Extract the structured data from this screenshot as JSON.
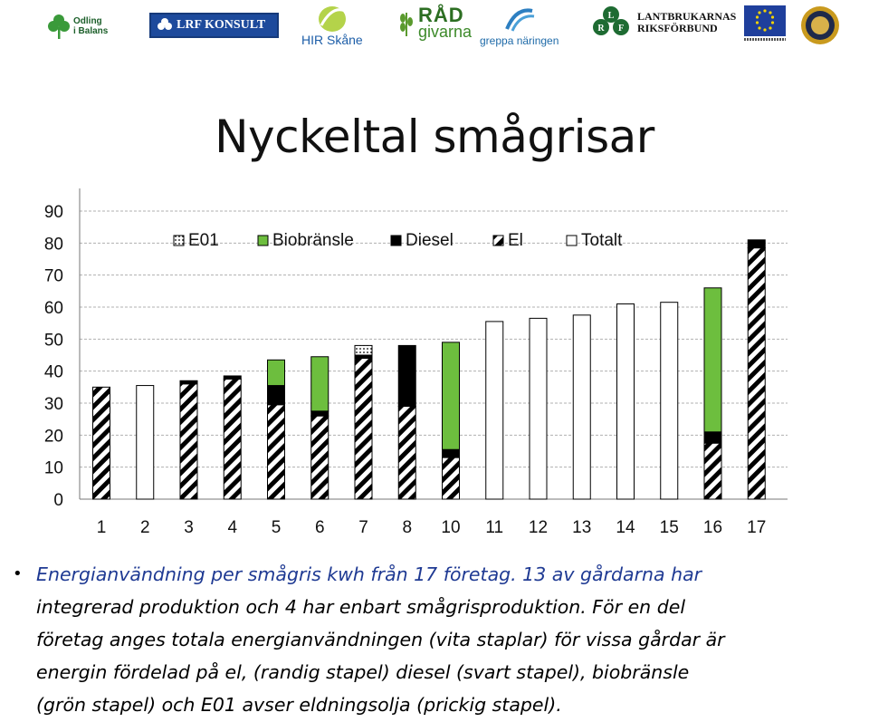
{
  "logos": {
    "odling": [
      "Odling",
      "i Balans"
    ],
    "lrf_konsult": "LRF KONSULT",
    "hir": "HIR Skåne",
    "radgivarna": [
      "RÅD",
      "givarna"
    ],
    "greppa": "greppa näringen",
    "lrf_letters": [
      "L",
      "R",
      "F"
    ],
    "lantbrukarnas": [
      "LANTBRUKARNAS",
      "RIKSFÖRBUND"
    ]
  },
  "title": "Nyckeltal smågrisar",
  "chart_data": {
    "type": "bar",
    "stacked": true,
    "categories": [
      "1",
      "2",
      "3",
      "4",
      "5",
      "6",
      "7",
      "8",
      "10",
      "11",
      "12",
      "13",
      "14",
      "15",
      "16",
      "17"
    ],
    "ylim": [
      0,
      90
    ],
    "yticks": [
      0,
      10,
      20,
      30,
      40,
      50,
      60,
      70,
      80,
      90
    ],
    "grid": true,
    "legend_position": "top",
    "series": [
      {
        "name": "El",
        "pattern": "hatch",
        "color": "#000000",
        "values": [
          35,
          0,
          36,
          37.5,
          29.5,
          26,
          44,
          29,
          13,
          0,
          0,
          0,
          0,
          0,
          17.5,
          78.5
        ]
      },
      {
        "name": "Diesel",
        "pattern": "solid",
        "color": "#000000",
        "values": [
          0,
          0,
          1,
          1,
          6,
          1.5,
          1,
          19,
          2.5,
          0,
          0,
          0,
          0,
          0,
          3.5,
          2.5
        ]
      },
      {
        "name": "Biobränsle",
        "pattern": "solid",
        "color": "#6dbe3e",
        "values": [
          0,
          0,
          0,
          0,
          8,
          17,
          0,
          0,
          33.5,
          0,
          0,
          0,
          0,
          0,
          45,
          0
        ]
      },
      {
        "name": "E01",
        "pattern": "dots",
        "color": "#ffffff",
        "values": [
          0,
          0,
          0,
          0,
          0,
          0,
          3,
          0,
          0,
          0,
          0,
          0,
          0,
          0,
          0,
          0
        ]
      },
      {
        "name": "Totalt",
        "pattern": "solid",
        "color": "#ffffff",
        "values": [
          0,
          35.5,
          0,
          0,
          0,
          0,
          0,
          0,
          0,
          55.5,
          56.5,
          57.5,
          61,
          61.5,
          0,
          0
        ]
      }
    ],
    "legend_order": [
      "E01",
      "Biobränsle",
      "Diesel",
      "El",
      "Totalt"
    ]
  },
  "caption": {
    "bullet": "•",
    "line1": "Energianvändning per smågris kwh från 17 företag. 13 av gårdarna har",
    "line2": "integrerad produktion och 4 har enbart smågrisproduktion. För en del",
    "line3": "företag anges totala energianvändningen (vita staplar) för vissa gårdar är",
    "line4": "energin fördelad på el, (randig stapel) diesel (svart stapel), biobränsle",
    "line5": "(grön stapel) och E01 avser eldningsolja (prickig stapel)."
  }
}
